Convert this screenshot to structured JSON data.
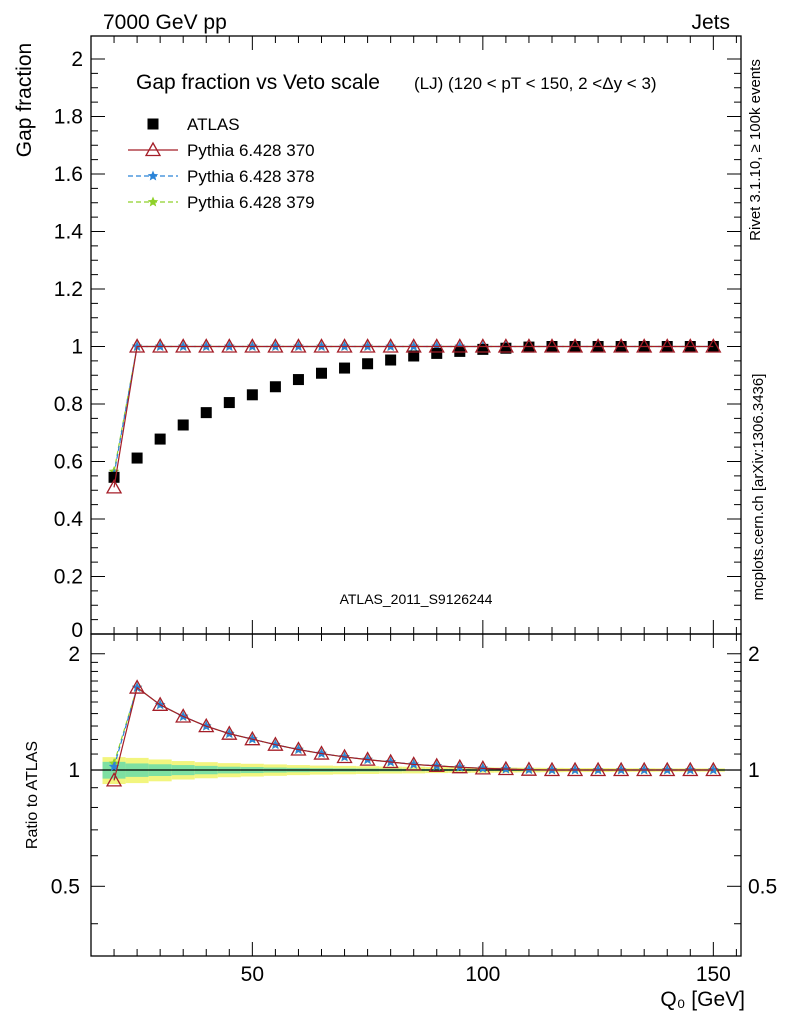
{
  "header": {
    "left": "7000 GeV pp",
    "right": "Jets"
  },
  "side_labels": {
    "rivet": "Rivet 3.1.10, ≥ 100k events",
    "mcplots": "mcplots.cern.ch [arXiv:1306.3436]"
  },
  "chart_data": [
    {
      "type": "scatter",
      "panel": "main",
      "title": "Gap fraction vs Veto scale",
      "subtitle": "(LJ) (120 < pT < 150, 2 <Δy < 3)",
      "ylabel": "Gap fraction",
      "xlabel": "",
      "watermark": "ATLAS_2011_S9126244",
      "xlim": [
        15,
        156
      ],
      "ylim": [
        0,
        2.08
      ],
      "yticks": [
        0,
        0.2,
        0.4,
        0.6,
        0.8,
        1,
        1.2,
        1.4,
        1.6,
        1.8,
        2
      ],
      "ytick_labels": [
        "0",
        "0.2",
        "0.4",
        "0.6",
        "0.8",
        "1",
        "1.2",
        "1.4",
        "1.6",
        "1.8",
        "2"
      ],
      "legend_position": "top-left",
      "x": [
        20,
        25,
        30,
        35,
        40,
        45,
        50,
        55,
        60,
        65,
        70,
        75,
        80,
        85,
        90,
        95,
        100,
        105,
        110,
        115,
        120,
        125,
        130,
        135,
        140,
        145,
        150
      ],
      "series": [
        {
          "name": "ATLAS",
          "marker": "square",
          "color": "#000000",
          "values": [
            0.545,
            0.612,
            0.678,
            0.727,
            0.77,
            0.805,
            0.832,
            0.86,
            0.885,
            0.907,
            0.925,
            0.94,
            0.953,
            0.967,
            0.976,
            0.983,
            0.99,
            0.994,
            0.998,
            1.0,
            1.0,
            1.0,
            1.0,
            1.0,
            1.0,
            1.0,
            1.0
          ]
        },
        {
          "name": "Pythia 6.428 370",
          "marker": "triangle-open",
          "line": "solid",
          "color": "#a51e28",
          "values": [
            0.51,
            1.0,
            1.0,
            1.0,
            1.0,
            1.0,
            1.0,
            1.0,
            1.0,
            1.0,
            1.0,
            1.0,
            1.0,
            1.0,
            1.0,
            1.0,
            1.0,
            1.0,
            1.0,
            1.0,
            1.0,
            1.0,
            1.0,
            1.0,
            1.0,
            1.0,
            1.0
          ]
        },
        {
          "name": "Pythia 6.428 378",
          "marker": "star",
          "line": "dashed",
          "color": "#2b84d8",
          "values": [
            0.555,
            1.0,
            1.0,
            1.0,
            1.0,
            1.0,
            1.0,
            1.0,
            1.0,
            1.0,
            1.0,
            1.0,
            1.0,
            1.0,
            1.0,
            1.0,
            1.0,
            1.0,
            1.0,
            1.0,
            1.0,
            1.0,
            1.0,
            1.0,
            1.0,
            1.0,
            1.0
          ]
        },
        {
          "name": "Pythia 6.428 379",
          "marker": "star",
          "line": "dashed",
          "color": "#8fd12a",
          "values": [
            0.565,
            1.0,
            1.0,
            1.0,
            1.0,
            1.0,
            1.0,
            1.0,
            1.0,
            1.0,
            1.0,
            1.0,
            1.0,
            1.0,
            1.0,
            1.0,
            1.0,
            1.0,
            1.0,
            1.0,
            1.0,
            1.0,
            1.0,
            1.0,
            1.0,
            1.0,
            1.0
          ]
        }
      ]
    },
    {
      "type": "line",
      "panel": "ratio",
      "ylabel": "Ratio to ATLAS",
      "xlabel": "Q₀ [GeV]",
      "xlim": [
        15,
        156
      ],
      "ylim": [
        0.33,
        2.25
      ],
      "xticks": [
        50,
        100,
        150
      ],
      "xtick_labels": [
        "50",
        "100",
        "150"
      ],
      "yticks": [
        0.5,
        1,
        2
      ],
      "ytick_labels": [
        "0.5",
        "1",
        "2"
      ],
      "x": [
        20,
        25,
        30,
        35,
        40,
        45,
        50,
        55,
        60,
        65,
        70,
        75,
        80,
        85,
        90,
        95,
        100,
        105,
        110,
        115,
        120,
        125,
        130,
        135,
        140,
        145,
        150
      ],
      "band": {
        "x_edges": [
          17.5,
          22.5,
          27.5,
          32.5,
          37.5,
          42.5,
          47.5,
          52.5,
          57.5,
          62.5,
          67.5,
          72.5,
          77.5,
          82.5,
          87.5,
          92.5,
          97.5,
          102.5,
          107.5,
          112.5,
          117.5,
          122.5,
          127.5,
          132.5,
          137.5,
          142.5,
          147.5,
          152.5
        ],
        "stat_halfwidth": [
          0.05,
          0.04,
          0.035,
          0.03,
          0.025,
          0.02,
          0.018,
          0.015,
          0.013,
          0.011,
          0.01,
          0.009,
          0.008,
          0.007,
          0.006,
          0.006,
          0.005,
          0.005,
          0.005,
          0.004,
          0.004,
          0.004,
          0.004,
          0.004,
          0.004,
          0.004,
          0.004
        ],
        "total_halfwidth": [
          0.08,
          0.075,
          0.065,
          0.055,
          0.048,
          0.042,
          0.038,
          0.034,
          0.03,
          0.027,
          0.025,
          0.023,
          0.021,
          0.02,
          0.018,
          0.017,
          0.016,
          0.015,
          0.014,
          0.013,
          0.012,
          0.012,
          0.011,
          0.011,
          0.01,
          0.01,
          0.01
        ],
        "stat_color": "#7ee0a2",
        "total_color": "#f2f57e"
      },
      "series": [
        {
          "name": "Pythia 6.428 370",
          "marker": "triangle-open",
          "line": "solid",
          "color": "#a51e28",
          "values": [
            0.94,
            1.635,
            1.475,
            1.376,
            1.299,
            1.242,
            1.202,
            1.163,
            1.13,
            1.103,
            1.081,
            1.064,
            1.049,
            1.034,
            1.025,
            1.017,
            1.01,
            1.006,
            1.002,
            1.0,
            1.0,
            1.0,
            1.0,
            1.0,
            1.0,
            1.0,
            1.0
          ]
        },
        {
          "name": "Pythia 6.428 378",
          "marker": "star",
          "line": "dashed",
          "color": "#2b84d8",
          "values": [
            1.02,
            1.635,
            1.475,
            1.376,
            1.299,
            1.242,
            1.202,
            1.163,
            1.13,
            1.103,
            1.081,
            1.064,
            1.049,
            1.034,
            1.025,
            1.017,
            1.01,
            1.006,
            1.002,
            1.0,
            1.0,
            1.0,
            1.0,
            1.0,
            1.0,
            1.0,
            1.0
          ]
        },
        {
          "name": "Pythia 6.428 379",
          "marker": "star",
          "line": "dashed",
          "color": "#8fd12a",
          "values": [
            1.04,
            1.635,
            1.475,
            1.376,
            1.299,
            1.242,
            1.202,
            1.163,
            1.13,
            1.103,
            1.081,
            1.064,
            1.049,
            1.034,
            1.025,
            1.017,
            1.01,
            1.006,
            1.002,
            1.0,
            1.0,
            1.0,
            1.0,
            1.0,
            1.0,
            1.0,
            1.0
          ]
        }
      ]
    }
  ]
}
